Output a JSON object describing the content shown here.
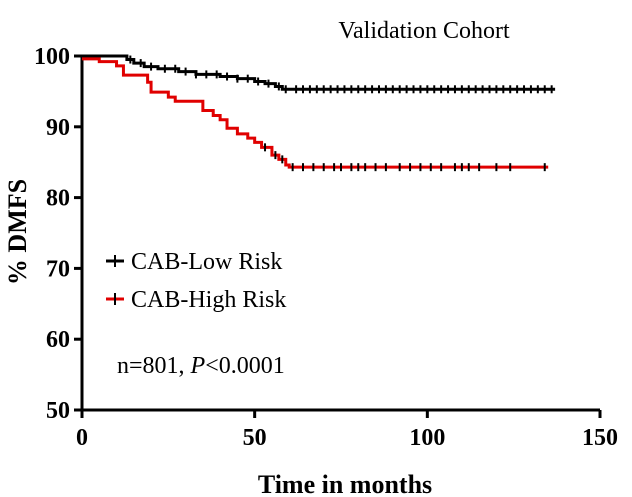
{
  "chart_data": {
    "type": "line",
    "title": "Validation Cohort",
    "xlabel": "Time in months",
    "ylabel": "% DMFS",
    "xlim": [
      0,
      150
    ],
    "ylim": [
      50,
      100
    ],
    "xticks": [
      0,
      50,
      100,
      150
    ],
    "yticks": [
      50,
      60,
      70,
      80,
      90,
      100
    ],
    "grid": false,
    "legend_position": "left-middle",
    "annotation": {
      "prefix": "n=801, ",
      "italic": "P",
      "suffix": "<0.0001"
    },
    "series": [
      {
        "name": "CAB-Low Risk",
        "color": "#000000",
        "step": true,
        "points": [
          [
            0,
            100
          ],
          [
            12,
            100
          ],
          [
            13,
            99.5
          ],
          [
            15,
            99
          ],
          [
            18,
            98.5
          ],
          [
            22,
            98.2
          ],
          [
            28,
            97.8
          ],
          [
            33,
            97.4
          ],
          [
            40,
            97.1
          ],
          [
            45,
            96.8
          ],
          [
            50,
            96.4
          ],
          [
            53,
            96.1
          ],
          [
            56,
            95.7
          ],
          [
            58,
            95.3
          ],
          [
            60,
            95.3
          ],
          [
            137,
            95.3
          ]
        ],
        "censor_x": [
          14,
          17,
          20,
          24,
          27,
          30,
          33,
          36,
          39,
          42,
          45,
          48,
          51,
          54,
          57,
          59,
          62,
          64,
          66,
          68,
          70,
          72,
          74,
          76,
          78,
          80,
          82,
          84,
          86,
          88,
          90,
          92,
          94,
          96,
          98,
          100,
          102,
          104,
          106,
          108,
          110,
          112,
          114,
          116,
          118,
          120,
          122,
          124,
          126,
          128,
          130,
          132,
          134,
          136
        ]
      },
      {
        "name": "CAB-High Risk",
        "color": "#e00000",
        "step": true,
        "points": [
          [
            0,
            99.6
          ],
          [
            5,
            99.2
          ],
          [
            10,
            98.6
          ],
          [
            12,
            97.3
          ],
          [
            19,
            96.3
          ],
          [
            20,
            94.9
          ],
          [
            25,
            94.2
          ],
          [
            27,
            93.6
          ],
          [
            35,
            92.3
          ],
          [
            38,
            91.6
          ],
          [
            40,
            91
          ],
          [
            42,
            89.8
          ],
          [
            45,
            89
          ],
          [
            48,
            88.4
          ],
          [
            50,
            87.8
          ],
          [
            52,
            87.1
          ],
          [
            55,
            86
          ],
          [
            57,
            85.4
          ],
          [
            59,
            84.6
          ],
          [
            60,
            84.3
          ],
          [
            135,
            84.3
          ]
        ],
        "censor_x": [
          53,
          56,
          58,
          61,
          64,
          67,
          70,
          73,
          75,
          78,
          80,
          82,
          85,
          88,
          92,
          95,
          98,
          101,
          104,
          108,
          110,
          112,
          115,
          120,
          124,
          134
        ]
      }
    ]
  }
}
